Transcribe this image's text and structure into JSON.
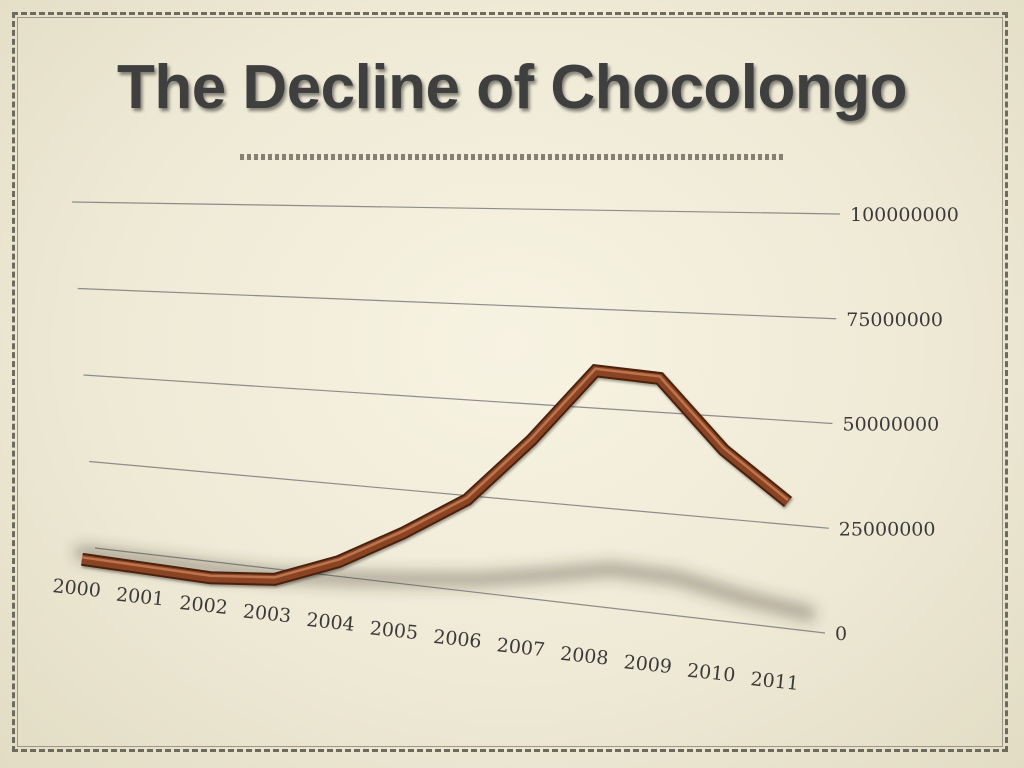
{
  "slide": {
    "title": "The Decline of Chocolongo"
  },
  "chart_data": {
    "type": "line",
    "title": "The Decline of Chocolongo",
    "xlabel": "",
    "ylabel": "",
    "categories": [
      "2000",
      "2001",
      "2002",
      "2003",
      "2004",
      "2005",
      "2006",
      "2007",
      "2008",
      "2009",
      "2010",
      "2011"
    ],
    "series": [
      {
        "values": [
          2000000,
          1500000,
          1000000,
          2500000,
          9000000,
          18000000,
          28000000,
          44000000,
          62000000,
          61000000,
          45000000,
          34000000
        ]
      }
    ],
    "yticks": [
      "0",
      "25000000",
      "50000000",
      "75000000",
      "100000000"
    ],
    "ylim": [
      0,
      100000000
    ],
    "grid": true,
    "legend": "none",
    "style": "3d-perspective",
    "line_color": "#8a4423"
  }
}
